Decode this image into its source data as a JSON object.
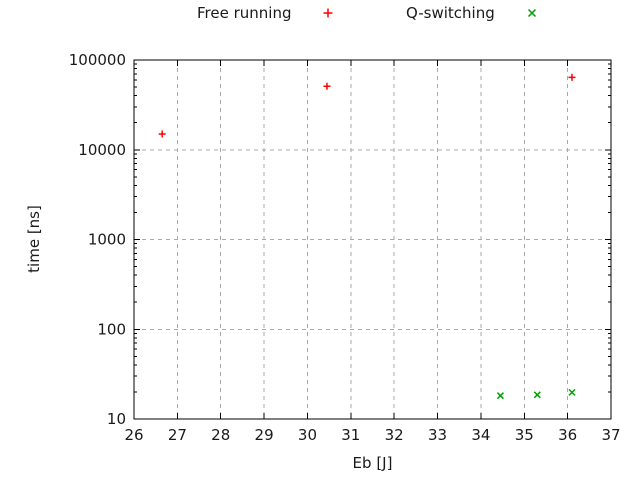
{
  "chart_data": {
    "type": "scatter",
    "title": "",
    "xlabel": "Eb [J]",
    "ylabel": "time [ns]",
    "x_axis": {
      "scale": "linear",
      "min": 26,
      "max": 37,
      "ticks": [
        26,
        27,
        28,
        29,
        30,
        31,
        32,
        33,
        34,
        35,
        36,
        37
      ]
    },
    "y_axis": {
      "scale": "log",
      "min": 10,
      "max": 100000,
      "ticks": [
        10,
        100,
        1000,
        10000,
        100000
      ],
      "tick_labels": [
        "10",
        "100",
        "1000",
        "10000",
        "100000"
      ],
      "minor_ticks": true
    },
    "grid": {
      "visible": true,
      "style": "dashed",
      "color": "#a9a9a9"
    },
    "legend_position": "top-center",
    "series": [
      {
        "name": "Free running",
        "marker": "plus",
        "color": "#ff0000",
        "points": [
          {
            "x": 26.65,
            "y": 15000
          },
          {
            "x": 30.45,
            "y": 51000
          },
          {
            "x": 36.1,
            "y": 64000
          }
        ]
      },
      {
        "name": "Q-switching",
        "marker": "cross",
        "color": "#00a000",
        "points": [
          {
            "x": 34.45,
            "y": 18.2
          },
          {
            "x": 35.3,
            "y": 18.6
          },
          {
            "x": 36.1,
            "y": 19.8
          }
        ]
      }
    ]
  },
  "colors": {
    "axis": "#000000",
    "text": "#1a1a1a",
    "background": "#ffffff"
  }
}
